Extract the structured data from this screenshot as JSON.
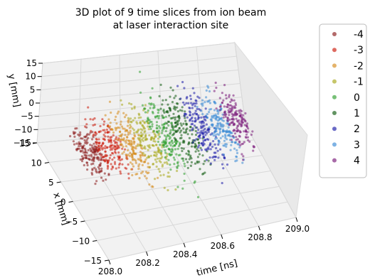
{
  "chart_data": {
    "type": "scatter",
    "projection": "3d",
    "title_lines": [
      "3D plot of 9 time slices from ion beam",
      "at laser interaction site"
    ],
    "xlabel": "time [ns]",
    "ylabel": "x [mm]",
    "zlabel": "y [mm]",
    "time_range": [
      208.0,
      209.0
    ],
    "time_ticks": [
      "208.0",
      "208.2",
      "208.4",
      "208.6",
      "208.8",
      "209.0"
    ],
    "x_range": [
      -15,
      15
    ],
    "x_ticks": [
      "15",
      "10",
      "5",
      "0",
      "−5",
      "−10",
      "−15"
    ],
    "y_range": [
      -15,
      15
    ],
    "y_ticks": [
      "15",
      "10",
      "5",
      "0",
      "−5",
      "−10",
      "−15"
    ],
    "grid": true,
    "legend_position": "right",
    "series": [
      {
        "name": "-4",
        "color": "#8b1a1a",
        "t_range": [
          208.06,
          208.16
        ],
        "spread_mm": 5
      },
      {
        "name": "-3",
        "color": "#cc1a0a",
        "t_range": [
          208.16,
          208.27
        ],
        "spread_mm": 6
      },
      {
        "name": "-2",
        "color": "#d68a1a",
        "t_range": [
          208.27,
          208.37
        ],
        "spread_mm": 7
      },
      {
        "name": "-1",
        "color": "#a8a81a",
        "t_range": [
          208.37,
          208.47
        ],
        "spread_mm": 8
      },
      {
        "name": "0",
        "color": "#2e9e2e",
        "t_range": [
          208.47,
          208.56
        ],
        "spread_mm": 8.5
      },
      {
        "name": "1",
        "color": "#0f5a0f",
        "t_range": [
          208.56,
          208.66
        ],
        "spread_mm": 8.5
      },
      {
        "name": "2",
        "color": "#1a1aa8",
        "t_range": [
          208.66,
          208.75
        ],
        "spread_mm": 8
      },
      {
        "name": "3",
        "color": "#3a8ad6",
        "t_range": [
          208.75,
          208.84
        ],
        "spread_mm": 7
      },
      {
        "name": "4",
        "color": "#7a1a7a",
        "t_range": [
          208.84,
          208.93
        ],
        "spread_mm": 6
      }
    ]
  }
}
